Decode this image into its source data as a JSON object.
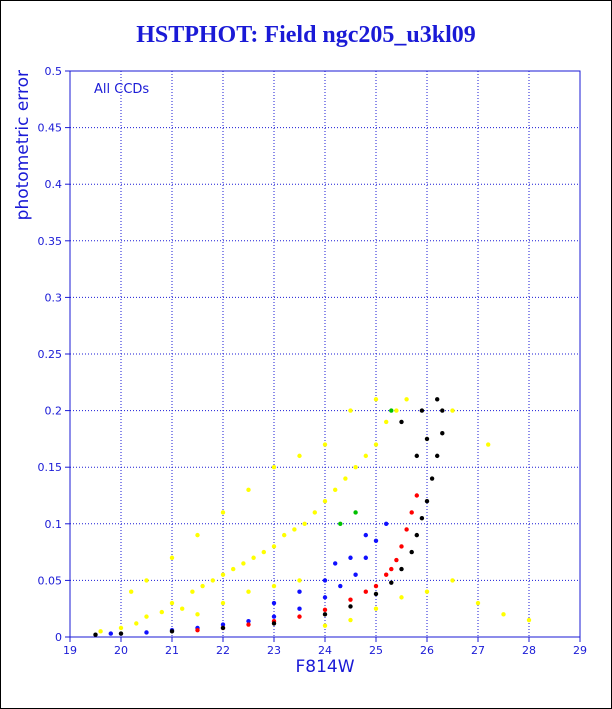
{
  "chart_data": {
    "type": "scatter",
    "title": "HSTPHOT: Field ngc205_u3kl09",
    "xlabel": "F814W",
    "ylabel": "photometric error",
    "annotation": "All CCDs",
    "xlim": [
      19,
      29
    ],
    "ylim": [
      0,
      0.5
    ],
    "xticks": [
      19,
      20,
      21,
      22,
      23,
      24,
      25,
      26,
      27,
      28,
      29
    ],
    "yticks": [
      0,
      0.05,
      0.1,
      0.15,
      0.2,
      0.25,
      0.3,
      0.35,
      0.4,
      0.45,
      0.5
    ],
    "grid": true,
    "colors": {
      "axes": "#1a1ad6",
      "grid": "#1a1ad6",
      "title": "#1a1ad6"
    },
    "series": [
      {
        "color": "#ffff00",
        "points": [
          [
            19.6,
            0.005
          ],
          [
            20.0,
            0.008
          ],
          [
            20.3,
            0.012
          ],
          [
            20.5,
            0.018
          ],
          [
            20.8,
            0.022
          ],
          [
            21.0,
            0.03
          ],
          [
            21.2,
            0.025
          ],
          [
            21.4,
            0.04
          ],
          [
            21.6,
            0.045
          ],
          [
            21.8,
            0.05
          ],
          [
            22.0,
            0.055
          ],
          [
            22.2,
            0.06
          ],
          [
            22.4,
            0.065
          ],
          [
            22.6,
            0.07
          ],
          [
            22.8,
            0.075
          ],
          [
            23.0,
            0.08
          ],
          [
            23.2,
            0.09
          ],
          [
            23.4,
            0.095
          ],
          [
            23.6,
            0.1
          ],
          [
            23.8,
            0.11
          ],
          [
            24.0,
            0.12
          ],
          [
            24.2,
            0.13
          ],
          [
            24.4,
            0.14
          ],
          [
            24.6,
            0.15
          ],
          [
            24.8,
            0.16
          ],
          [
            25.0,
            0.17
          ],
          [
            25.2,
            0.19
          ],
          [
            25.4,
            0.2
          ],
          [
            25.6,
            0.21
          ],
          [
            24.0,
            0.17
          ],
          [
            23.5,
            0.16
          ],
          [
            23.0,
            0.15
          ],
          [
            22.5,
            0.13
          ],
          [
            22.0,
            0.11
          ],
          [
            21.5,
            0.09
          ],
          [
            21.0,
            0.07
          ],
          [
            20.5,
            0.05
          ],
          [
            20.2,
            0.04
          ],
          [
            24.5,
            0.2
          ],
          [
            25.0,
            0.21
          ],
          [
            22.0,
            0.03
          ],
          [
            22.5,
            0.04
          ],
          [
            23.0,
            0.045
          ],
          [
            23.5,
            0.05
          ],
          [
            21.5,
            0.02
          ],
          [
            24.0,
            0.01
          ],
          [
            24.5,
            0.015
          ],
          [
            25.0,
            0.025
          ],
          [
            25.5,
            0.035
          ],
          [
            26.0,
            0.04
          ],
          [
            26.5,
            0.05
          ],
          [
            27.0,
            0.03
          ],
          [
            27.5,
            0.02
          ],
          [
            28.0,
            0.015
          ],
          [
            26.5,
            0.2
          ],
          [
            27.2,
            0.17
          ]
        ]
      },
      {
        "color": "#1010ff",
        "points": [
          [
            19.8,
            0.003
          ],
          [
            20.5,
            0.004
          ],
          [
            21.0,
            0.006
          ],
          [
            21.5,
            0.008
          ],
          [
            22.0,
            0.011
          ],
          [
            22.5,
            0.014
          ],
          [
            23.0,
            0.018
          ],
          [
            23.5,
            0.025
          ],
          [
            24.0,
            0.035
          ],
          [
            24.3,
            0.045
          ],
          [
            24.6,
            0.055
          ],
          [
            24.8,
            0.07
          ],
          [
            25.0,
            0.085
          ],
          [
            25.2,
            0.1
          ],
          [
            23.0,
            0.03
          ],
          [
            23.5,
            0.04
          ],
          [
            24.0,
            0.05
          ],
          [
            24.5,
            0.07
          ],
          [
            24.8,
            0.09
          ],
          [
            24.2,
            0.065
          ]
        ]
      },
      {
        "color": "#ff0000",
        "points": [
          [
            21.5,
            0.006
          ],
          [
            22.0,
            0.008
          ],
          [
            22.5,
            0.011
          ],
          [
            23.0,
            0.014
          ],
          [
            23.5,
            0.018
          ],
          [
            24.0,
            0.024
          ],
          [
            24.5,
            0.033
          ],
          [
            25.0,
            0.045
          ],
          [
            25.2,
            0.055
          ],
          [
            25.4,
            0.068
          ],
          [
            25.5,
            0.08
          ],
          [
            25.6,
            0.095
          ],
          [
            25.7,
            0.11
          ],
          [
            25.8,
            0.125
          ],
          [
            25.3,
            0.06
          ],
          [
            24.8,
            0.04
          ]
        ]
      },
      {
        "color": "#000000",
        "points": [
          [
            19.5,
            0.002
          ],
          [
            20.0,
            0.003
          ],
          [
            21.0,
            0.005
          ],
          [
            22.0,
            0.008
          ],
          [
            23.0,
            0.012
          ],
          [
            24.0,
            0.02
          ],
          [
            24.5,
            0.027
          ],
          [
            25.0,
            0.038
          ],
          [
            25.3,
            0.048
          ],
          [
            25.5,
            0.06
          ],
          [
            25.7,
            0.075
          ],
          [
            25.8,
            0.09
          ],
          [
            25.9,
            0.105
          ],
          [
            26.0,
            0.12
          ],
          [
            26.1,
            0.14
          ],
          [
            26.2,
            0.16
          ],
          [
            26.3,
            0.18
          ],
          [
            26.3,
            0.2
          ],
          [
            26.2,
            0.21
          ],
          [
            25.9,
            0.2
          ],
          [
            25.5,
            0.19
          ],
          [
            26.0,
            0.175
          ],
          [
            25.8,
            0.16
          ]
        ]
      },
      {
        "color": "#00c000",
        "points": [
          [
            24.3,
            0.1
          ],
          [
            24.6,
            0.11
          ],
          [
            25.3,
            0.2
          ]
        ]
      }
    ]
  }
}
